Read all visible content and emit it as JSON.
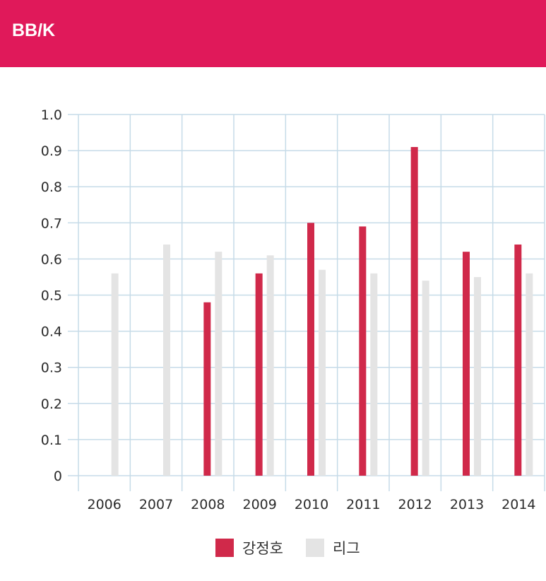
{
  "header": {
    "title": "BB/K"
  },
  "colors": {
    "header_bg": "#e0195a",
    "series_player": "#d0294a",
    "series_league": "#e4e4e4",
    "grid": "#c6dbe8"
  },
  "chart_data": {
    "type": "bar",
    "categories": [
      "2006",
      "2007",
      "2008",
      "2009",
      "2010",
      "2011",
      "2012",
      "2013",
      "2014"
    ],
    "series": [
      {
        "name": "강정호",
        "values": [
          null,
          null,
          0.48,
          0.56,
          0.7,
          0.69,
          0.91,
          0.62,
          0.64
        ]
      },
      {
        "name": "리그",
        "values": [
          0.56,
          0.64,
          0.62,
          0.61,
          0.57,
          0.56,
          0.54,
          0.55,
          0.56
        ]
      }
    ],
    "ylim": [
      0,
      1.0
    ],
    "yticks": [
      "0",
      "0.1",
      "0.2",
      "0.3",
      "0.4",
      "0.5",
      "0.6",
      "0.7",
      "0.8",
      "0.9",
      "1.0"
    ],
    "grid": true,
    "legend_position": "bottom-center"
  }
}
